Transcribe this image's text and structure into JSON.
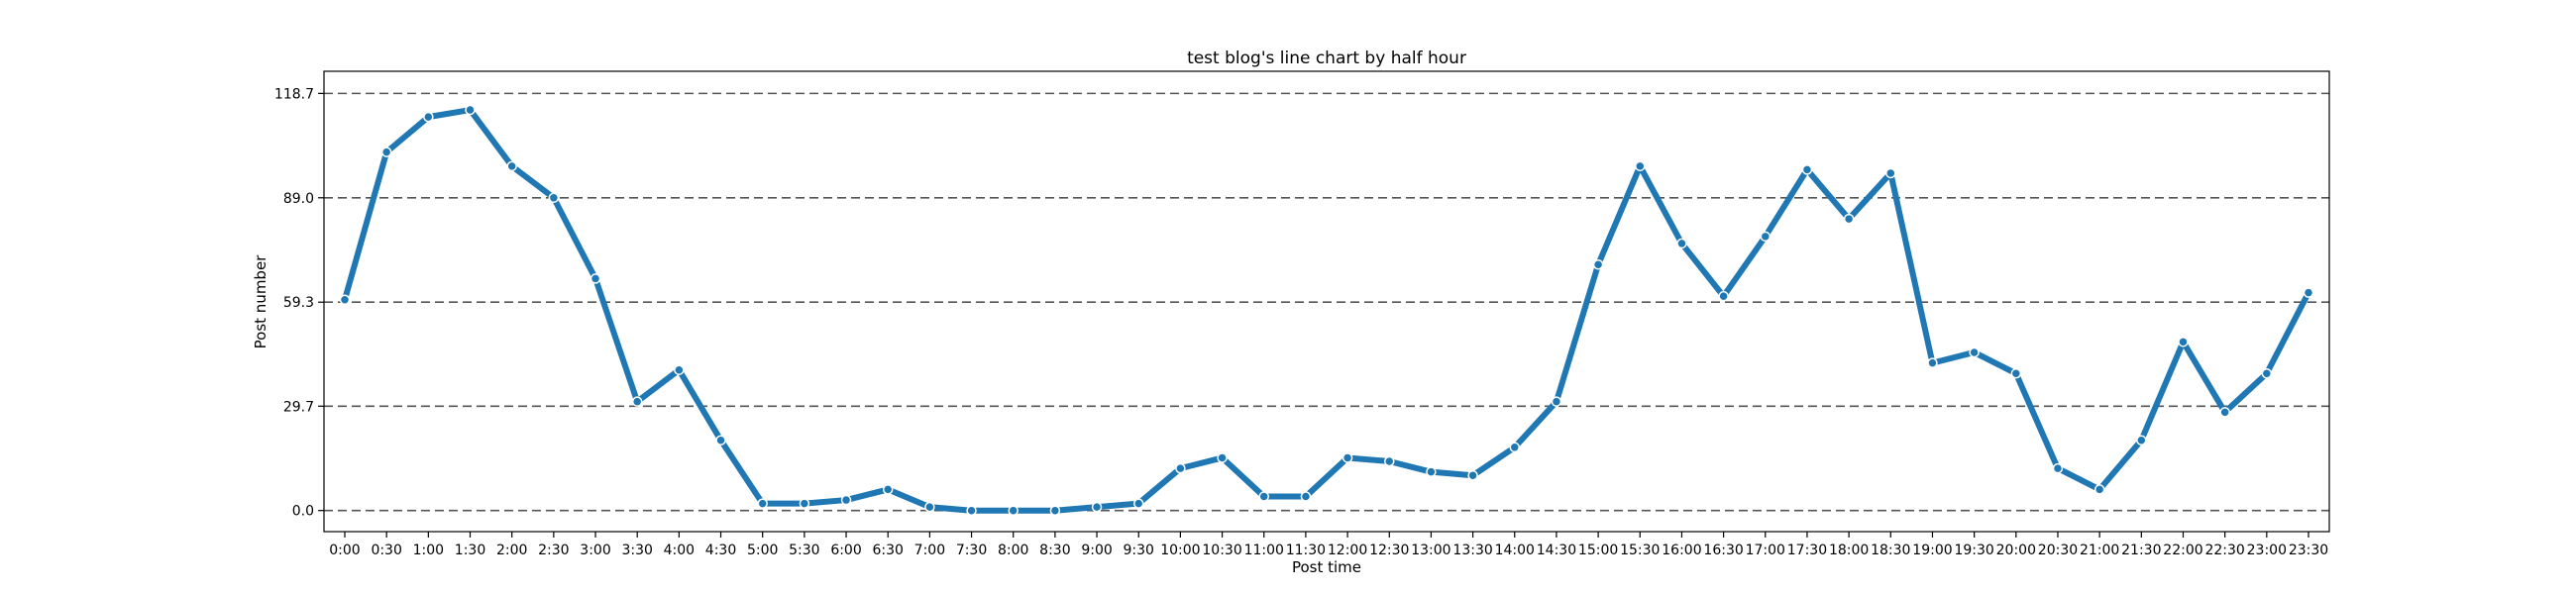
{
  "chart_data": {
    "type": "line",
    "title": "test blog's line chart by half hour",
    "xlabel": "Post time",
    "ylabel": "Post number",
    "ylim": [
      -6,
      125
    ],
    "yticks": [
      0.0,
      29.7,
      59.3,
      89.0,
      118.7
    ],
    "ytick_labels": [
      "0.0",
      "29.7",
      "59.3",
      "89.0",
      "118.7"
    ],
    "grid": "horizontal dashed",
    "colors": {
      "line": "#1f77b4",
      "marker_edge": "#ffffff",
      "grid": "#555555"
    },
    "categories": [
      "0:00",
      "0:30",
      "1:00",
      "1:30",
      "2:00",
      "2:30",
      "3:00",
      "3:30",
      "4:00",
      "4:30",
      "5:00",
      "5:30",
      "6:00",
      "6:30",
      "7:00",
      "7:30",
      "8:00",
      "8:30",
      "9:00",
      "9:30",
      "10:00",
      "10:30",
      "11:00",
      "11:30",
      "12:00",
      "12:30",
      "13:00",
      "13:30",
      "14:00",
      "14:30",
      "15:00",
      "15:30",
      "16:00",
      "16:30",
      "17:00",
      "17:30",
      "18:00",
      "18:30",
      "19:00",
      "19:30",
      "20:00",
      "20:30",
      "21:00",
      "21:30",
      "22:00",
      "22:30",
      "23:00",
      "23:30"
    ],
    "series": [
      {
        "values": [
          60,
          102,
          112,
          114,
          98,
          89,
          66,
          31,
          40,
          20,
          2,
          2,
          3,
          6,
          1,
          0,
          0,
          0,
          1,
          2,
          12,
          15,
          4,
          4,
          15,
          14,
          11,
          10,
          18,
          31,
          70,
          98,
          76,
          61,
          78,
          97,
          83,
          96,
          42,
          45,
          39,
          12,
          6,
          20,
          48,
          28,
          39,
          62
        ]
      }
    ]
  }
}
